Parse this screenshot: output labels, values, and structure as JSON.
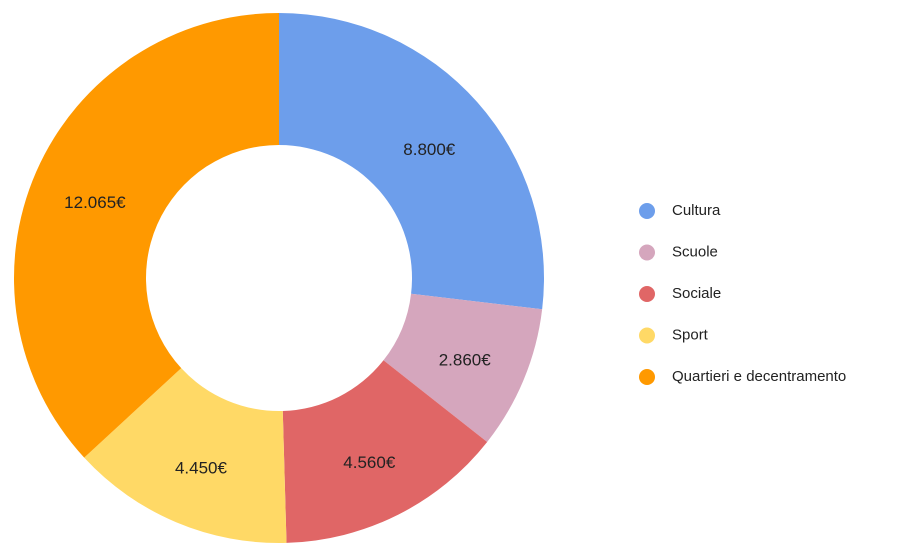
{
  "chart_data": {
    "type": "donut",
    "categories": [
      "Cultura",
      "Scuole",
      "Sociale",
      "Sport",
      "Quartieri e decentramento"
    ],
    "values": [
      8800,
      2860,
      4560,
      4450,
      12065
    ],
    "value_labels": [
      "8.800€",
      "2.860€",
      "4.560€",
      "4.450€",
      "12.065€"
    ],
    "colors": [
      "#6d9eeb",
      "#d5a6bd",
      "#e06666",
      "#ffd966",
      "#ff9900"
    ],
    "legend": "right"
  }
}
